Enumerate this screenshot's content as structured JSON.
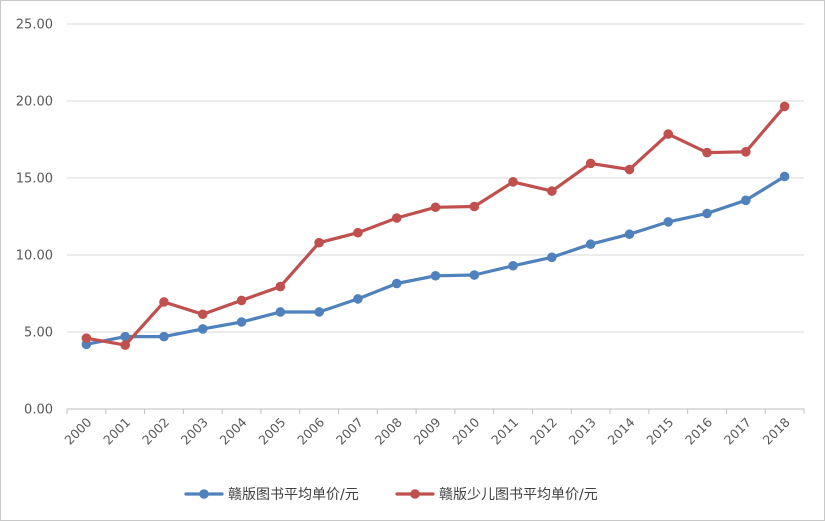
{
  "chart_data": {
    "type": "line",
    "title": "",
    "xlabel": "",
    "ylabel": "",
    "ylim": [
      0,
      25
    ],
    "y_ticks": [
      "0.00",
      "5.00",
      "10.00",
      "15.00",
      "20.00",
      "25.00"
    ],
    "grid": "horizontal",
    "legend_position": "bottom",
    "categories": [
      "2000",
      "2001",
      "2002",
      "2003",
      "2004",
      "2005",
      "2006",
      "2007",
      "2008",
      "2009",
      "2010",
      "2011",
      "2012",
      "2013",
      "2014",
      "2015",
      "2016",
      "2017",
      "2018"
    ],
    "series": [
      {
        "name": "赣版图书平均单价/元",
        "color": "#4f81bd",
        "values": [
          4.2,
          4.7,
          4.7,
          5.2,
          5.65,
          6.3,
          6.3,
          7.15,
          8.15,
          8.65,
          8.7,
          9.3,
          9.85,
          10.7,
          11.35,
          12.15,
          12.7,
          13.55,
          15.1
        ]
      },
      {
        "name": "赣版少儿图书平均单价/元",
        "color": "#c0504d",
        "values": [
          4.6,
          4.15,
          6.95,
          6.15,
          7.05,
          7.95,
          10.8,
          11.45,
          12.4,
          13.1,
          13.15,
          14.75,
          14.15,
          15.95,
          15.55,
          17.85,
          16.65,
          16.7,
          19.65
        ]
      }
    ]
  }
}
